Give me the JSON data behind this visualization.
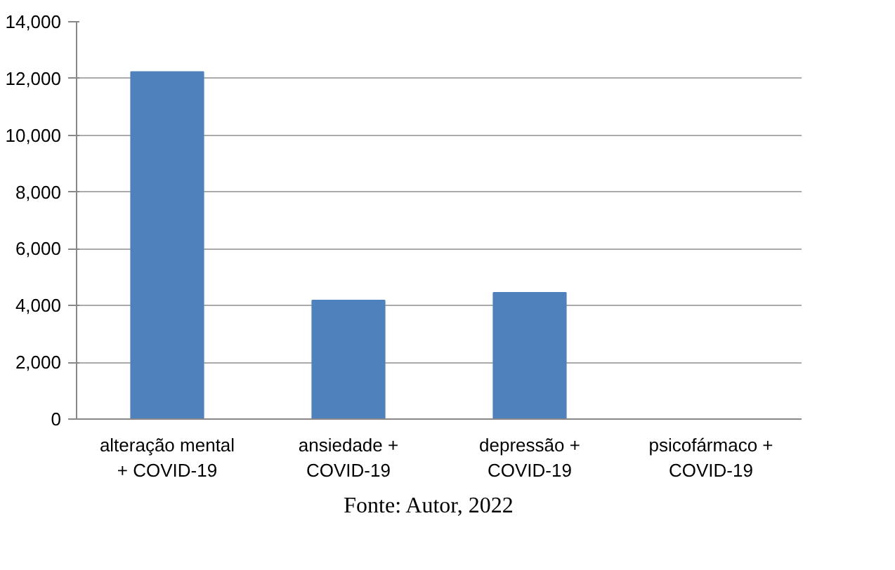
{
  "chart_data": {
    "type": "bar",
    "categories": [
      "alteração mental\n+ COVID-19",
      "ansiedade +\nCOVID-19",
      "depressão +\nCOVID-19",
      "psicofármaco +\nCOVID-19"
    ],
    "values": [
      12230,
      4180,
      4450,
      0
    ],
    "color": "#4f81bd",
    "ylim": [
      0,
      14000
    ],
    "yticks": [
      {
        "value": 0,
        "label": "0"
      },
      {
        "value": 2000,
        "label": "2,000"
      },
      {
        "value": 4000,
        "label": "4,000"
      },
      {
        "value": 6000,
        "label": "6,000"
      },
      {
        "value": 8000,
        "label": "8,000"
      },
      {
        "value": 10000,
        "label": "10,000"
      },
      {
        "value": 12000,
        "label": "12,000"
      },
      {
        "value": 14000,
        "label": "14,000"
      }
    ],
    "grid": "y",
    "annotations": [
      "Fonte: Autor, 2022"
    ]
  }
}
